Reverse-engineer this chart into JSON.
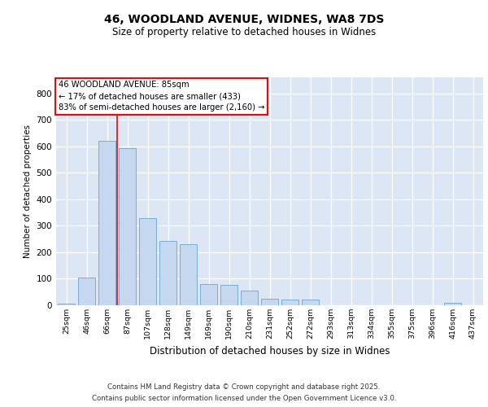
{
  "title_line1": "46, WOODLAND AVENUE, WIDNES, WA8 7DS",
  "title_line2": "Size of property relative to detached houses in Widnes",
  "xlabel": "Distribution of detached houses by size in Widnes",
  "ylabel": "Number of detached properties",
  "categories": [
    "25sqm",
    "46sqm",
    "66sqm",
    "87sqm",
    "107sqm",
    "128sqm",
    "149sqm",
    "169sqm",
    "190sqm",
    "210sqm",
    "231sqm",
    "252sqm",
    "272sqm",
    "293sqm",
    "313sqm",
    "334sqm",
    "355sqm",
    "375sqm",
    "396sqm",
    "416sqm",
    "437sqm"
  ],
  "values": [
    5,
    103,
    620,
    593,
    330,
    242,
    230,
    80,
    78,
    55,
    26,
    20,
    20,
    0,
    0,
    0,
    0,
    0,
    0,
    8,
    0
  ],
  "bar_color": "#c5d8f0",
  "bar_edge_color": "#7aadd4",
  "vline_color": "red",
  "vline_x": 2.5,
  "ylim": [
    0,
    860
  ],
  "yticks": [
    0,
    100,
    200,
    300,
    400,
    500,
    600,
    700,
    800
  ],
  "background_color": "#dce6f5",
  "annotation_line1": "46 WOODLAND AVENUE: 85sqm",
  "annotation_line2": "← 17% of detached houses are smaller (433)",
  "annotation_line3": "83% of semi-detached houses are larger (2,160) →",
  "footer_line1": "Contains HM Land Registry data © Crown copyright and database right 2025.",
  "footer_line2": "Contains public sector information licensed under the Open Government Licence v3.0."
}
